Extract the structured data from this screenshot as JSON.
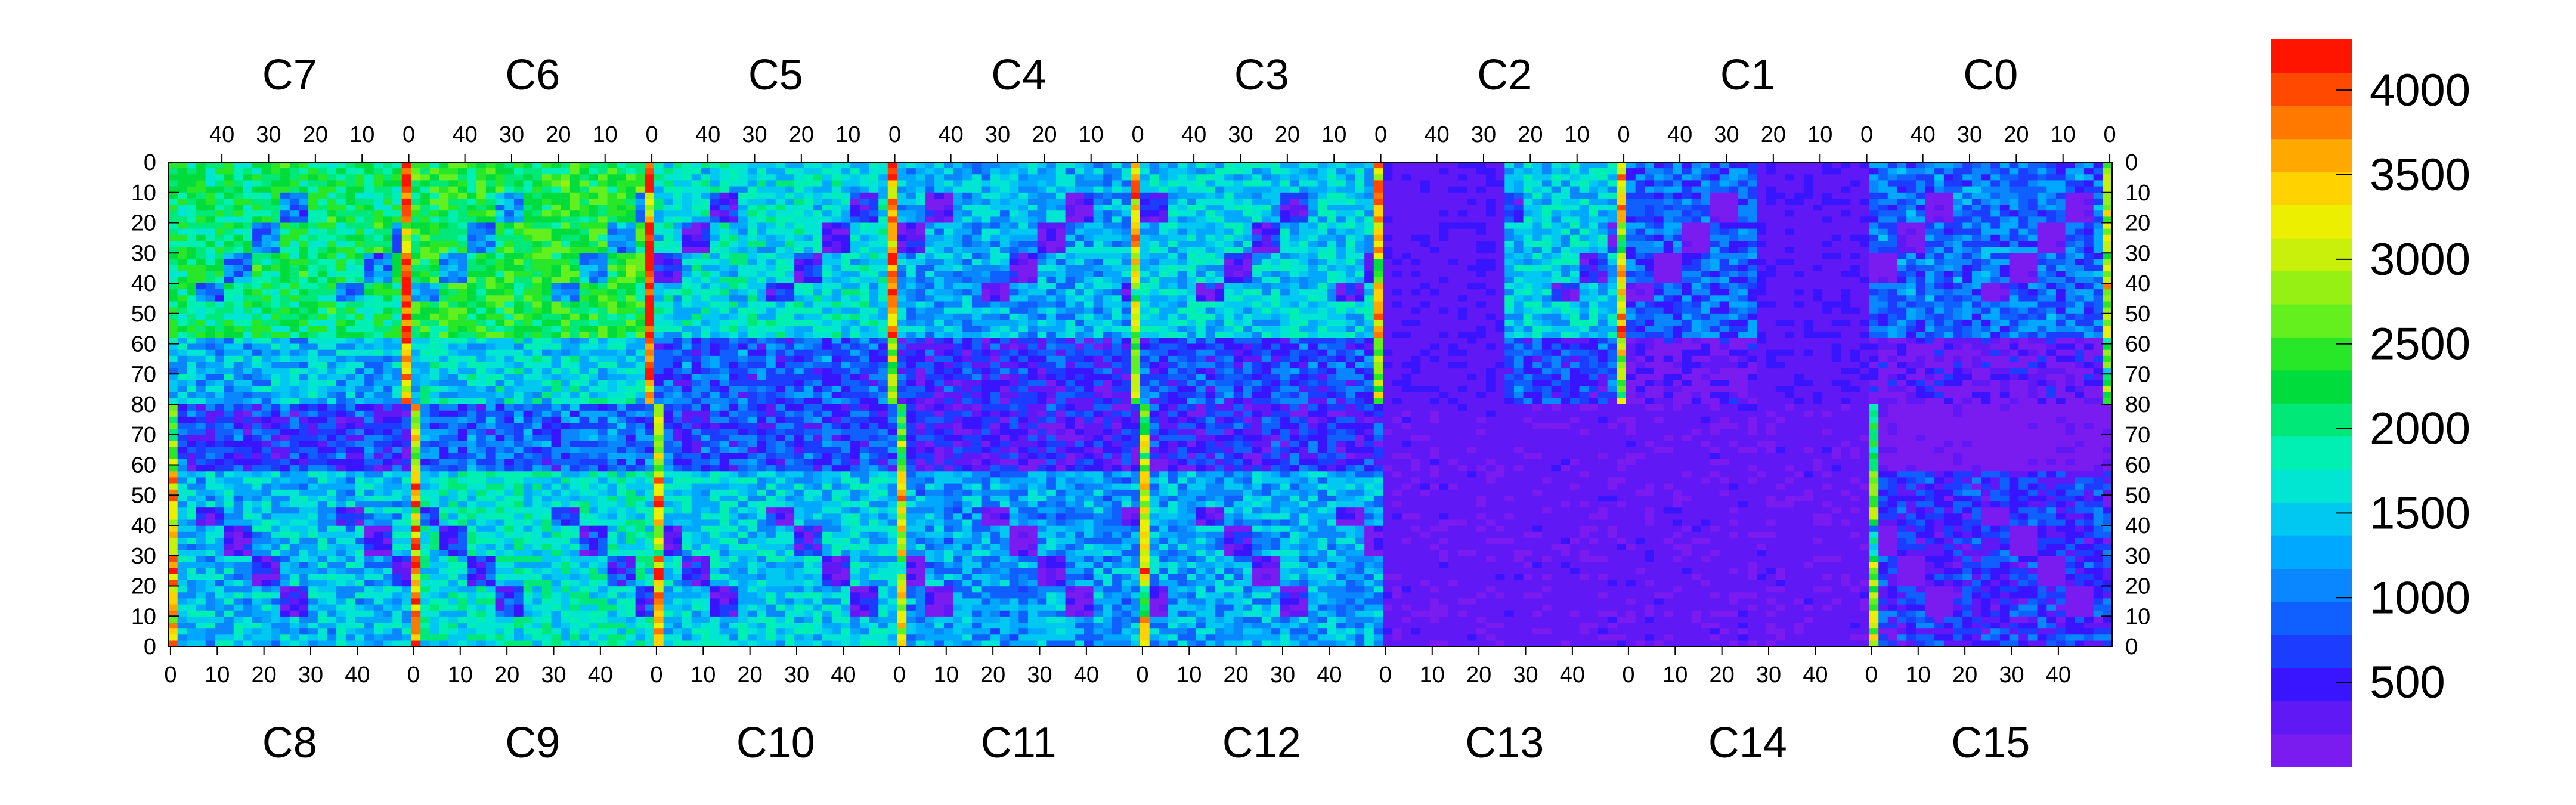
{
  "chart_data": {
    "type": "heatmap",
    "title": "",
    "xlabel": "",
    "ylabel": "",
    "chip_width": 52,
    "chip_height": 80,
    "top_chips": [
      "C7",
      "C6",
      "C5",
      "C4",
      "C3",
      "C2",
      "C1",
      "C0"
    ],
    "bottom_chips": [
      "C8",
      "C9",
      "C10",
      "C11",
      "C12",
      "C13",
      "C14",
      "C15"
    ],
    "top_tick_labels": [
      "40",
      "30",
      "20",
      "10",
      "0"
    ],
    "bottom_tick_labels": [
      "0",
      "10",
      "20",
      "30",
      "40"
    ],
    "y_tick_labels": [
      "0",
      "10",
      "20",
      "30",
      "40",
      "50",
      "60",
      "70",
      "80",
      "70",
      "60",
      "50",
      "40",
      "30",
      "20",
      "10",
      "0"
    ],
    "zlim": [
      0,
      4300
    ],
    "colorbar": {
      "placement": "right",
      "tick_values": [
        500,
        1000,
        1500,
        2000,
        2500,
        3000,
        3500,
        4000
      ],
      "tick_labels": [
        "500",
        "1000",
        "1500",
        "2000",
        "2500",
        "3000",
        "3500",
        "4000"
      ],
      "colors": [
        "#7a1cf0",
        "#6018f5",
        "#3814ff",
        "#1c3cff",
        "#1060ff",
        "#0a86ff",
        "#00a8ff",
        "#00c8f0",
        "#00e6d2",
        "#00f0b4",
        "#00e878",
        "#00dc3c",
        "#28e628",
        "#64f01e",
        "#96f014",
        "#c8f00a",
        "#ecf000",
        "#ffd200",
        "#ffa800",
        "#ff7800",
        "#ff4800",
        "#ff1400"
      ]
    },
    "grid": false,
    "legend": "none"
  }
}
